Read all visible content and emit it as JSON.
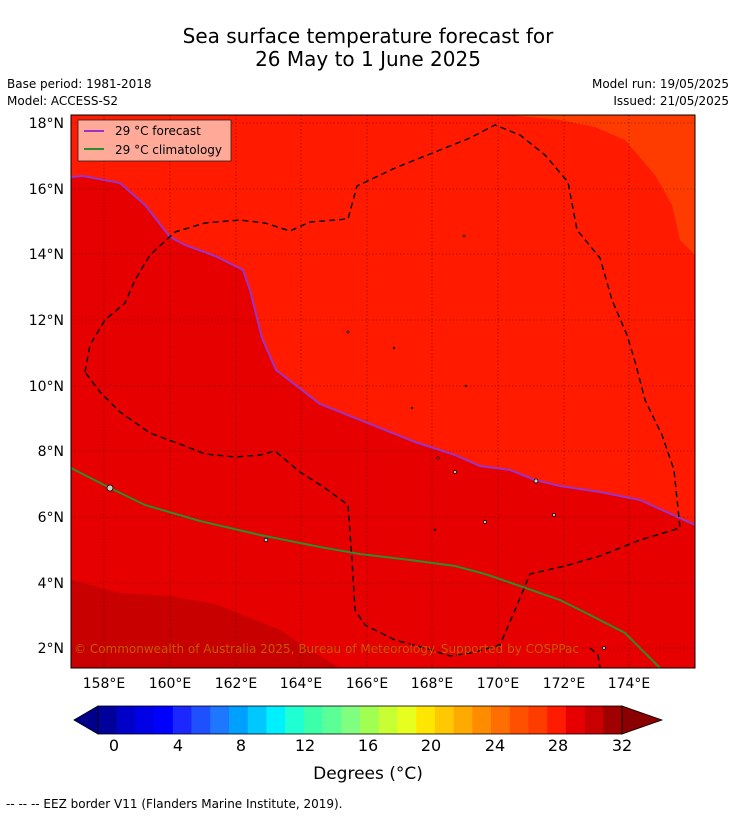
{
  "title_line1": "Sea surface temperature forecast for",
  "title_line2": "26 May to 1 June 2025",
  "base_period": "Base period: 1981-2018",
  "model": "Model: ACCESS-S2",
  "model_run": "Model run: 19/05/2025",
  "issued": "Issued: 21/05/2025",
  "legend": {
    "forecast": "29 °C  forecast",
    "climatology": "29 °C  climatology"
  },
  "lat_ticks": [
    "18°N",
    "16°N",
    "14°N",
    "12°N",
    "10°N",
    "8°N",
    "6°N",
    "4°N",
    "2°N"
  ],
  "lon_ticks": [
    "158°E",
    "160°E",
    "162°E",
    "164°E",
    "166°E",
    "168°E",
    "170°E",
    "172°E",
    "174°E"
  ],
  "copyright": "© Commonwealth of Australia 2025, Bureau of Meteorology. Supported by COSPPac",
  "colorbar": {
    "label": "Degrees (°C)",
    "ticks": [
      "0",
      "4",
      "8",
      "12",
      "16",
      "20",
      "24",
      "28",
      "32"
    ]
  },
  "footnote": "--  --  -- EEZ border V11 (Flanders Marine Institute, 2019).",
  "colors": {
    "band_29": "#e60000",
    "band_30": "#ff1a00",
    "band_31": "#ff3c00",
    "band_28": "#c80000",
    "forecast_line": "#9933cc",
    "climatology_line": "#2e8b2e",
    "legend_bg": "#ffaa99"
  }
}
